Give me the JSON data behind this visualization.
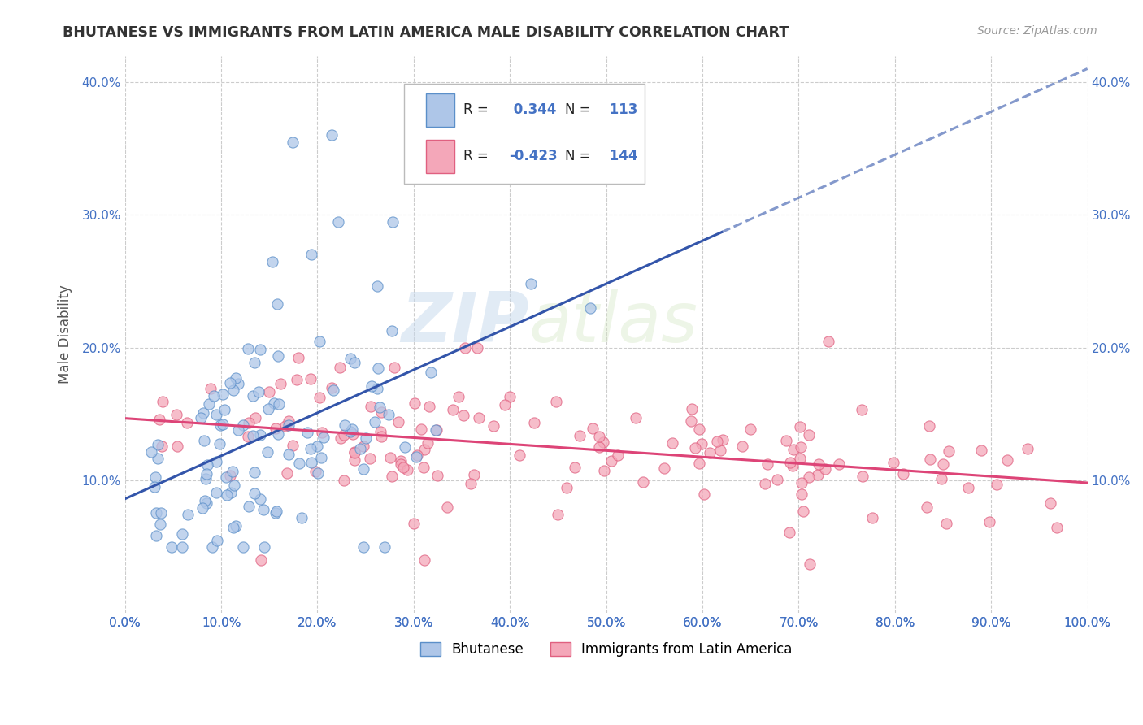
{
  "title": "BHUTANESE VS IMMIGRANTS FROM LATIN AMERICA MALE DISABILITY CORRELATION CHART",
  "source": "Source: ZipAtlas.com",
  "ylabel": "Male Disability",
  "xlabel": "",
  "xlim": [
    0.0,
    1.0
  ],
  "ylim": [
    0.0,
    0.42
  ],
  "xtick_vals": [
    0.0,
    0.1,
    0.2,
    0.3,
    0.4,
    0.5,
    0.6,
    0.7,
    0.8,
    0.9,
    1.0
  ],
  "ytick_vals": [
    0.1,
    0.2,
    0.3,
    0.4
  ],
  "ytick_labels": [
    "10.0%",
    "20.0%",
    "30.0%",
    "40.0%"
  ],
  "xtick_labels": [
    "0.0%",
    "10.0%",
    "20.0%",
    "30.0%",
    "40.0%",
    "50.0%",
    "60.0%",
    "70.0%",
    "80.0%",
    "90.0%",
    "100.0%"
  ],
  "bhutanese_color": "#aec6e8",
  "latin_color": "#f4a7b9",
  "bhutanese_edge": "#5b8fc9",
  "latin_edge": "#e06080",
  "trend_blue": "#3355aa",
  "trend_pink": "#dd4477",
  "R_bhutanese": 0.344,
  "N_bhutanese": 113,
  "R_latin": -0.423,
  "N_latin": 144,
  "legend_labels": [
    "Bhutanese",
    "Immigrants from Latin America"
  ],
  "watermark_zip": "ZIP",
  "watermark_atlas": "atlas",
  "background_color": "#ffffff",
  "grid_color": "#cccccc",
  "title_color": "#333333",
  "tick_color": "#4472c4",
  "right_tick_color": "#4472c4"
}
